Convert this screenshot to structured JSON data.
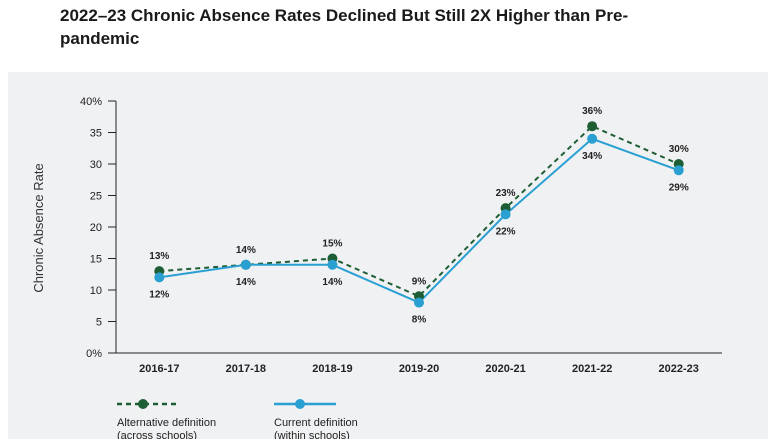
{
  "title": "2022–23 Chronic Absence Rates Declined But Still 2X Higher than Pre-pandemic",
  "chart_data": {
    "type": "line",
    "categories": [
      "2016-17",
      "2017-18",
      "2018-19",
      "2019-20",
      "2020-21",
      "2021-22",
      "2022-23"
    ],
    "ylabel": "Chronic Absence Rate",
    "ylim": [
      0,
      40
    ],
    "yticks": [
      "0%",
      "5",
      "10",
      "15",
      "20",
      "25",
      "30",
      "35",
      "40%"
    ],
    "grid": false,
    "legend_position": "bottom-left",
    "series": [
      {
        "name_line1": "Alternative definition",
        "name_line2": "(across schools)",
        "style": "dashed",
        "color": "#1e5e35",
        "values": [
          13,
          14,
          15,
          9,
          23,
          36,
          30
        ],
        "labels": [
          "13%",
          "14%",
          "15%",
          "9%",
          "23%",
          "36%",
          "30%"
        ]
      },
      {
        "name_line1": "Current definition",
        "name_line2": "(within schools)",
        "style": "solid",
        "color": "#2aa0d2",
        "values": [
          12,
          14,
          14,
          8,
          22,
          34,
          29
        ],
        "labels": [
          "12%",
          "14%",
          "14%",
          "8%",
          "22%",
          "34%",
          "29%"
        ]
      }
    ]
  }
}
